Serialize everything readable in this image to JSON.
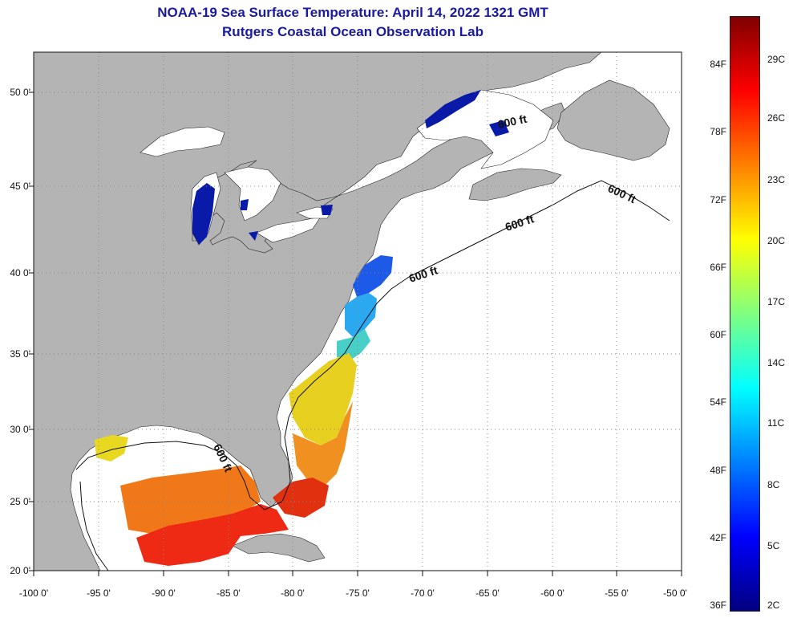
{
  "title": {
    "line1": "NOAA-19 Sea Surface Temperature:  April 14, 2022 1321 GMT",
    "line2": "Rutgers Coastal Ocean Observation Lab"
  },
  "map": {
    "lat_labels": [
      "50 0'",
      "45 0'",
      "40 0'",
      "35 0'",
      "30 0'",
      "25 0'",
      "20 0'"
    ],
    "lon_labels": [
      "-100 0'",
      "-95 0'",
      "-90 0'",
      "-85 0'",
      "-80 0'",
      "-75 0'",
      "-70 0'",
      "-65 0'",
      "-60 0'",
      "-55 0'",
      "-50 0'"
    ],
    "lat_range": [
      20,
      52
    ],
    "lon_range": [
      -100,
      -50
    ],
    "depth_contour_labels": [
      "600 ft",
      "600 ft",
      "600 ft",
      "600 ft",
      "600 ft"
    ],
    "land_color": "#b4b4b4",
    "no_data_color": "#ffffff",
    "grid": "dotted"
  },
  "colorbar": {
    "fahrenheit_labels": [
      "84F",
      "78F",
      "72F",
      "66F",
      "60F",
      "54F",
      "48F",
      "42F",
      "36F"
    ],
    "celsius_labels": [
      "29C",
      "26C",
      "23C",
      "20C",
      "17C",
      "14C",
      "11C",
      "8C",
      "5C",
      "2C"
    ],
    "colors": [
      "#800000",
      "#ff0000",
      "#ff8000",
      "#ffff00",
      "#80ff80",
      "#00ffff",
      "#0080ff",
      "#0000ff",
      "#000080"
    ]
  }
}
